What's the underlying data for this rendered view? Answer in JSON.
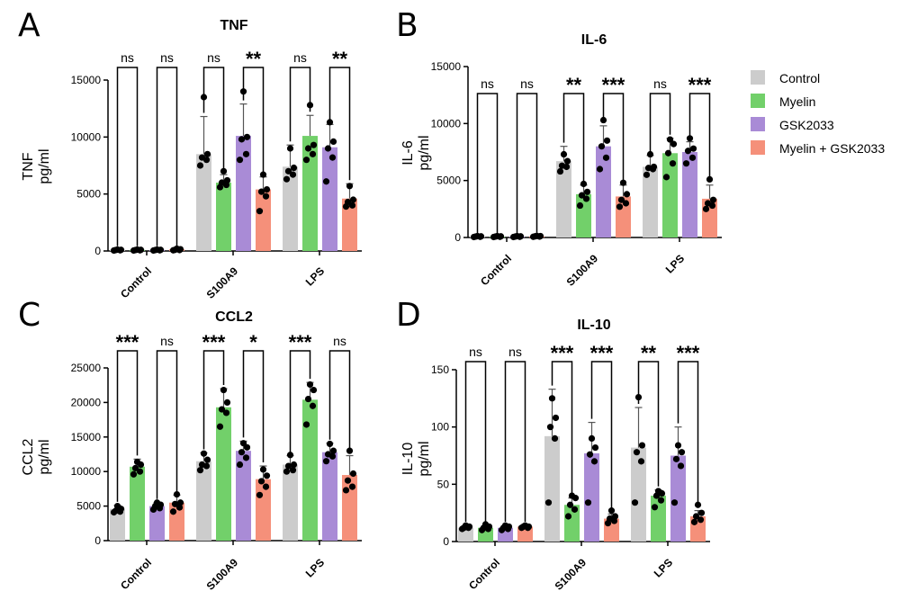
{
  "figure": {
    "colors": {
      "Control": "#cccccc",
      "Myelin": "#72d06a",
      "GSK2033": "#a98bd6",
      "Myelin + GSK2033": "#f5907a"
    },
    "legend": [
      "Control",
      "Myelin",
      "GSK2033",
      "Myelin + GSK2033"
    ]
  },
  "chart_data": [
    {
      "panel": "A",
      "title": "TNF",
      "ylabel": [
        "TNF",
        "pg/ml"
      ],
      "type": "bar",
      "ylim": [
        0,
        15000
      ],
      "yticks": [
        0,
        5000,
        10000,
        15000
      ],
      "categories": [
        "Control",
        "S100A9",
        "LPS"
      ],
      "series": [
        {
          "name": "Control",
          "values": [
            100,
            8500,
            7400
          ],
          "err": [
            0,
            3300,
            1900
          ],
          "points": [
            [
              40,
              60,
              80,
              100,
              120
            ],
            [
              7500,
              8000,
              8200,
              8500,
              13500
            ],
            [
              6300,
              6700,
              7000,
              7300,
              9000
            ]
          ]
        },
        {
          "name": "Myelin",
          "values": [
            100,
            6000,
            10100
          ],
          "err": [
            0,
            700,
            1800
          ],
          "points": [
            [
              40,
              60,
              80,
              100,
              120
            ],
            [
              5600,
              5800,
              6000,
              6200,
              7000
            ],
            [
              8000,
              8500,
              9000,
              9300,
              12800
            ]
          ]
        },
        {
          "name": "GSK2033",
          "values": [
            100,
            10100,
            9100
          ],
          "err": [
            0,
            2800,
            2000
          ],
          "points": [
            [
              40,
              60,
              80,
              100,
              120
            ],
            [
              8000,
              8500,
              9800,
              10000,
              14000
            ],
            [
              6100,
              8200,
              9000,
              9600,
              11300
            ]
          ]
        },
        {
          "name": "Myelin + GSK2033",
          "values": [
            150,
            5400,
            4600
          ],
          "err": [
            0,
            1100,
            1300
          ],
          "points": [
            [
              60,
              80,
              100,
              150,
              200
            ],
            [
              3500,
              4800,
              5200,
              5400,
              6700
            ],
            [
              3900,
              4000,
              4300,
              4500,
              5700
            ]
          ]
        }
      ],
      "significance": [
        [
          "ns",
          "ns"
        ],
        [
          "ns",
          "**"
        ],
        [
          "ns",
          "**"
        ]
      ]
    },
    {
      "panel": "B",
      "title": "IL-6",
      "ylabel": [
        "IL-6",
        "pg/ml"
      ],
      "type": "bar",
      "ylim": [
        0,
        15000
      ],
      "yticks": [
        0,
        5000,
        10000,
        15000
      ],
      "categories": [
        "Control",
        "S100A9",
        "LPS"
      ],
      "series": [
        {
          "name": "Control",
          "values": [
            80,
            6700,
            6200
          ],
          "err": [
            0,
            1300,
            1000
          ],
          "points": [
            [
              40,
              60,
              80,
              100,
              120
            ],
            [
              5800,
              6200,
              6300,
              6700,
              7300
            ],
            [
              5500,
              6000,
              6100,
              6200,
              7300
            ]
          ]
        },
        {
          "name": "Myelin",
          "values": [
            80,
            3800,
            7400
          ],
          "err": [
            0,
            800,
            1300
          ],
          "points": [
            [
              40,
              60,
              80,
              100,
              120
            ],
            [
              2800,
              3400,
              3700,
              4000,
              4700
            ],
            [
              5300,
              6500,
              7400,
              8200,
              8600
            ]
          ]
        },
        {
          "name": "GSK2033",
          "values": [
            80,
            8000,
            7500
          ],
          "err": [
            0,
            1800,
            900
          ],
          "points": [
            [
              40,
              60,
              80,
              100,
              120
            ],
            [
              6000,
              7000,
              8000,
              8500,
              10300
            ],
            [
              6500,
              7000,
              7600,
              7800,
              8700
            ]
          ]
        },
        {
          "name": "Myelin + GSK2033",
          "values": [
            100,
            3600,
            3400
          ],
          "err": [
            0,
            1000,
            1200
          ],
          "points": [
            [
              60,
              80,
              100,
              120,
              140
            ],
            [
              2700,
              3000,
              3300,
              3800,
              4800
            ],
            [
              2500,
              2800,
              3000,
              3300,
              5100
            ]
          ]
        }
      ],
      "significance": [
        [
          "ns",
          "ns"
        ],
        [
          "**",
          "***"
        ],
        [
          "ns",
          "***"
        ]
      ]
    },
    {
      "panel": "C",
      "title": "CCL2",
      "ylabel": [
        "CCL2",
        "pg/ml"
      ],
      "type": "bar",
      "ylim": [
        0,
        25000
      ],
      "yticks": [
        0,
        5000,
        10000,
        15000,
        20000,
        25000
      ],
      "categories": [
        "Control",
        "S100A9",
        "LPS"
      ],
      "series": [
        {
          "name": "Control",
          "values": [
            4600,
            11500,
            11000
          ],
          "err": [
            500,
            1200,
            1300
          ],
          "points": [
            [
              4100,
              4200,
              4300,
              4600,
              5000
            ],
            [
              10200,
              10800,
              11000,
              11700,
              12600
            ],
            [
              10000,
              10200,
              10800,
              11000,
              12400
            ]
          ]
        },
        {
          "name": "Myelin",
          "values": [
            10700,
            19300,
            20400
          ],
          "err": [
            1100,
            2700,
            2500
          ],
          "points": [
            [
              9600,
              10000,
              10500,
              11000,
              11400
            ],
            [
              16500,
              18500,
              19000,
              20000,
              21800
            ],
            [
              16800,
              19500,
              20500,
              21800,
              22600
            ]
          ]
        },
        {
          "name": "GSK2033",
          "values": [
            5000,
            13000,
            12800
          ],
          "err": [
            500,
            1400,
            1300
          ],
          "points": [
            [
              4500,
              4700,
              5000,
              5200,
              5500
            ],
            [
              11000,
              12000,
              12800,
              13500,
              14100
            ],
            [
              11500,
              12200,
              12500,
              13000,
              14000
            ]
          ]
        },
        {
          "name": "Myelin + GSK2033",
          "values": [
            5500,
            8900,
            9500
          ],
          "err": [
            1100,
            1900,
            2800
          ],
          "points": [
            [
              4200,
              4800,
              5300,
              5500,
              6700
            ],
            [
              6600,
              7800,
              8600,
              9400,
              10300
            ],
            [
              7300,
              7800,
              8700,
              9700,
              13000
            ]
          ]
        }
      ],
      "significance": [
        [
          "***",
          "ns"
        ],
        [
          "***",
          "*"
        ],
        [
          "***",
          "ns"
        ]
      ]
    },
    {
      "panel": "D",
      "title": "IL-10",
      "ylabel": [
        "IL-10",
        "pg/ml"
      ],
      "type": "bar",
      "ylim": [
        0,
        150
      ],
      "yticks": [
        0,
        50,
        100,
        150
      ],
      "categories": [
        "Control",
        "S100A9",
        "LPS"
      ],
      "series": [
        {
          "name": "Control",
          "values": [
            12,
            92,
            82
          ],
          "err": [
            2,
            41,
            35
          ],
          "points": [
            [
              11,
              12,
              12,
              13,
              14
            ],
            [
              34,
              90,
              100,
              108,
              125
            ],
            [
              34,
              70,
              78,
              84,
              126
            ]
          ]
        },
        {
          "name": "Myelin",
          "values": [
            12,
            32,
            40
          ],
          "err": [
            2,
            6,
            5
          ],
          "points": [
            [
              10,
              11,
              12,
              13,
              15
            ],
            [
              22,
              28,
              32,
              38,
              40
            ],
            [
              30,
              36,
              40,
              42,
              44
            ]
          ]
        },
        {
          "name": "GSK2033",
          "values": [
            12,
            77,
            75
          ],
          "err": [
            2,
            27,
            25
          ],
          "points": [
            [
              10,
              11,
              12,
              13,
              14
            ],
            [
              34,
              70,
              76,
              82,
              90
            ],
            [
              34,
              66,
              72,
              78,
              84
            ]
          ]
        },
        {
          "name": "Myelin + GSK2033",
          "values": [
            13,
            20,
            22
          ],
          "err": [
            1,
            4,
            5
          ],
          "points": [
            [
              12,
              12,
              13,
              13,
              14
            ],
            [
              16,
              18,
              20,
              22,
              27
            ],
            [
              17,
              19,
              22,
              25,
              32
            ]
          ]
        }
      ],
      "significance": [
        [
          "ns",
          "ns"
        ],
        [
          "***",
          "***"
        ],
        [
          "**",
          "***"
        ]
      ]
    }
  ]
}
